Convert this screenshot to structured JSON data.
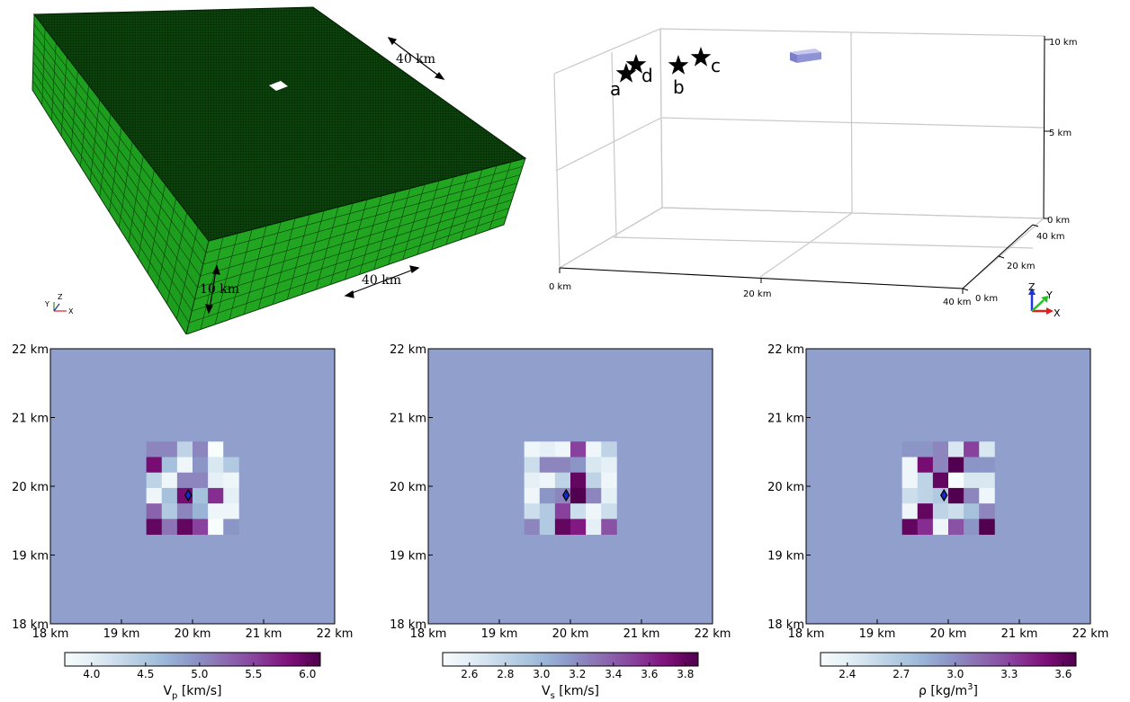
{
  "mesh": {
    "top_dim_label": "40 km",
    "side_dim_label": "40 km",
    "depth_label": "10 km",
    "triad": {
      "y": "Y",
      "z": "Z",
      "x": "X"
    },
    "colors": {
      "top": "#0b3d0b",
      "side": "#1fa21f",
      "front": "#1a8a1a"
    }
  },
  "scene": {
    "stations": [
      {
        "label": "a"
      },
      {
        "label": "d"
      },
      {
        "label": "b"
      },
      {
        "label": "c"
      }
    ],
    "z_ticks": [
      "10 km",
      "5 km",
      "0 km"
    ],
    "x_ticks": [
      "0 km",
      "20 km",
      "40 km"
    ],
    "y_ticks": [
      "0 km",
      "20 km",
      "40 km"
    ],
    "triad": {
      "z": "Z",
      "y": "Y",
      "x": "X"
    },
    "block_color": "#8f93d6"
  },
  "maps": [
    {
      "id": "vp",
      "colorbar_label_main": "V",
      "colorbar_label_sub": "p",
      "colorbar_label_tail": " [km/s]",
      "colorbar_ticks": [
        "4.0",
        "4.5",
        "5.0",
        "5.5",
        "6.0"
      ],
      "x_ticks": [
        "18 km",
        "19 km",
        "20 km",
        "21 km",
        "22 km"
      ],
      "y_ticks": [
        "22 km",
        "21 km",
        "20 km",
        "19 km",
        "18 km"
      ],
      "background_value": 0.47,
      "grid": [
        [
          0.55,
          0.55,
          0.25,
          0.55,
          0.0,
          -1
        ],
        [
          0.9,
          0.35,
          0.05,
          0.5,
          0.15,
          0.3
        ],
        [
          0.25,
          0.05,
          0.55,
          0.55,
          0.1,
          0.05
        ],
        [
          0.05,
          0.35,
          0.9,
          0.35,
          0.8,
          0.1
        ],
        [
          0.65,
          0.3,
          0.55,
          0.4,
          0.05,
          0.05
        ],
        [
          0.95,
          0.6,
          0.95,
          0.75,
          0.0,
          0.5
        ]
      ]
    },
    {
      "id": "vs",
      "colorbar_label_main": "V",
      "colorbar_label_sub": "s",
      "colorbar_label_tail": " [km/s]",
      "colorbar_ticks": [
        "2.6",
        "2.8",
        "3.0",
        "3.2",
        "3.4",
        "3.6",
        "3.8"
      ],
      "x_ticks": [
        "18 km",
        "19 km",
        "20 km",
        "21 km",
        "22 km"
      ],
      "y_ticks": [
        "22 km",
        "21 km",
        "20 km",
        "19 km",
        "18 km"
      ],
      "background_value": 0.47,
      "grid": [
        [
          0.05,
          0.1,
          0.05,
          0.75,
          0.05,
          0.25
        ],
        [
          0.2,
          0.55,
          0.55,
          0.5,
          0.15,
          0.1
        ],
        [
          0.1,
          0.05,
          0.25,
          0.95,
          0.25,
          0.05
        ],
        [
          0.05,
          0.5,
          0.55,
          0.99,
          0.55,
          0.1
        ],
        [
          0.2,
          0.3,
          0.75,
          0.2,
          0.05,
          0.2
        ],
        [
          0.55,
          0.3,
          0.95,
          0.85,
          0.1,
          0.7
        ]
      ]
    },
    {
      "id": "rho",
      "colorbar_label_main": "ρ [kg/m",
      "colorbar_label_sub": "3",
      "colorbar_label_tail": "]",
      "colorbar_sup": true,
      "colorbar_ticks": [
        "2.4",
        "2.7",
        "3.0",
        "3.3",
        "3.6"
      ],
      "x_ticks": [
        "18 km",
        "19 km",
        "20 km",
        "21 km",
        "22 km"
      ],
      "y_ticks": [
        "22 km",
        "21 km",
        "20 km",
        "19 km",
        "18 km"
      ],
      "background_value": 0.47,
      "grid": [
        [
          0.5,
          0.5,
          0.55,
          0.15,
          0.75,
          0.15
        ],
        [
          0.05,
          0.9,
          0.55,
          0.99,
          0.5,
          0.5
        ],
        [
          0.05,
          0.25,
          0.95,
          0.0,
          0.15,
          0.15
        ],
        [
          0.2,
          0.25,
          0.3,
          0.99,
          0.55,
          0.05
        ],
        [
          0.05,
          0.95,
          0.25,
          0.2,
          0.35,
          0.55
        ],
        [
          0.95,
          0.8,
          0.05,
          0.7,
          0.5,
          0.99
        ]
      ]
    }
  ]
}
